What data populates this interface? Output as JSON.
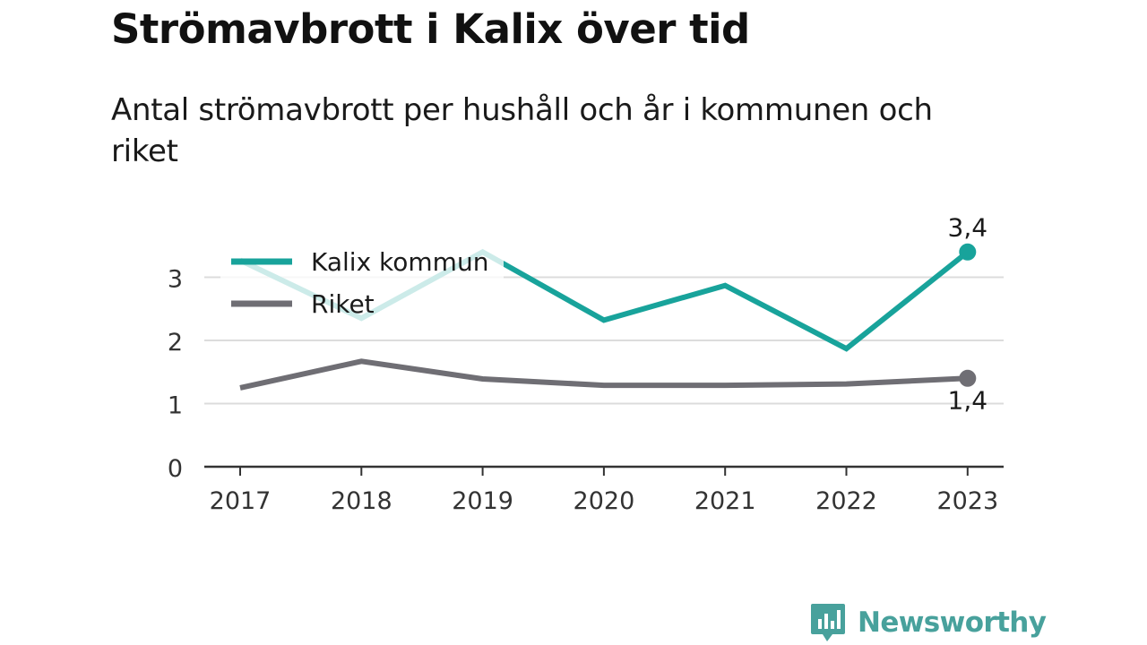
{
  "title": "Strömavbrott i Kalix över tid",
  "subtitle": "Antal strömavbrott per hushåll och år i kommunen och riket",
  "brand": {
    "name": "Newsworthy",
    "color": "#48a19c",
    "icon": "bar-chart-bubble-icon"
  },
  "chart_data": {
    "type": "line",
    "x": [
      "2017",
      "2018",
      "2019",
      "2020",
      "2021",
      "2022",
      "2023"
    ],
    "series": [
      {
        "name": "Kalix kommun",
        "color": "#18a39b",
        "values": [
          3.27,
          2.35,
          3.4,
          2.32,
          2.87,
          1.87,
          3.4
        ]
      },
      {
        "name": "Riket",
        "color": "#6f6e74",
        "values": [
          1.25,
          1.67,
          1.39,
          1.29,
          1.29,
          1.31,
          1.4
        ]
      }
    ],
    "end_labels": [
      "3,4",
      "1,4"
    ],
    "y_ticks": [
      "0",
      "1",
      "2",
      "3"
    ],
    "ylim": [
      0,
      3.5
    ],
    "legend": "top-left",
    "grid": true,
    "xlabel": "",
    "ylabel": ""
  }
}
